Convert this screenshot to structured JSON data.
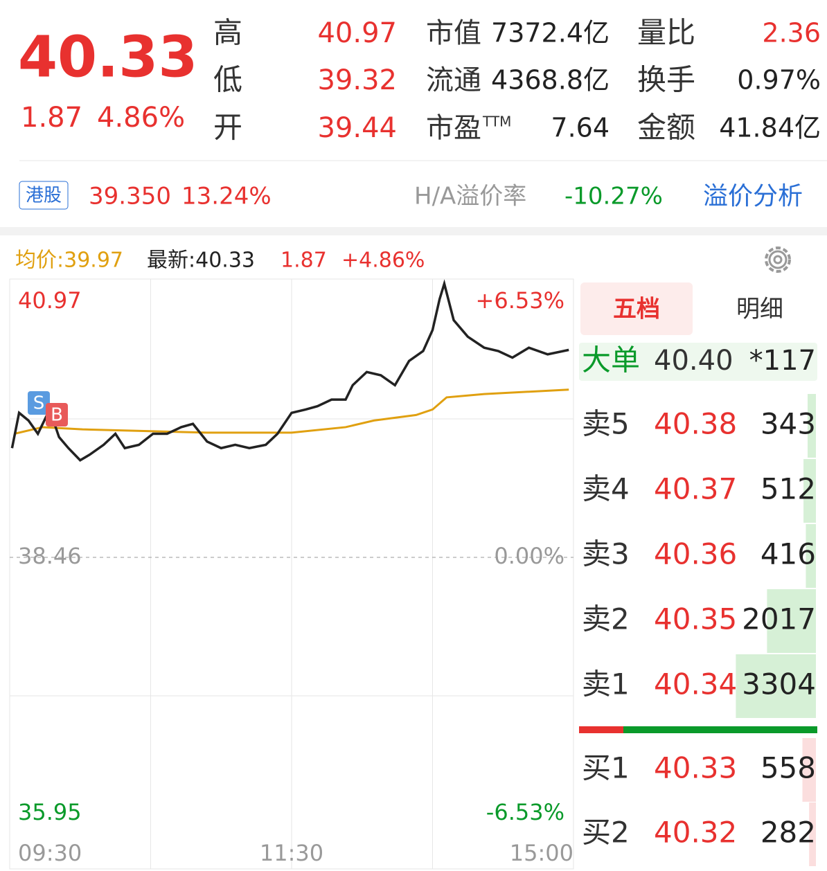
{
  "quote": {
    "price": "40.33",
    "change": "1.87",
    "change_pct": "4.86%",
    "left_stats": [
      {
        "label": "高",
        "value": "40.97"
      },
      {
        "label": "低",
        "value": "39.32"
      },
      {
        "label": "开",
        "value": "39.44"
      }
    ],
    "mid_stats": [
      {
        "label": "市值",
        "value": "7372.4亿"
      },
      {
        "label": "流通",
        "value": "4368.8亿"
      },
      {
        "label": "市盈",
        "sup": "TTM",
        "value": "7.64"
      }
    ],
    "right_stats": [
      {
        "label": "量比",
        "value": "2.36"
      },
      {
        "label": "换手",
        "value": "0.97%"
      },
      {
        "label": "金额",
        "value": "41.84亿"
      }
    ]
  },
  "hk": {
    "badge": "港股",
    "price": "39.350",
    "pct": "13.24%",
    "premium_label": "H/A溢价率",
    "premium": "-10.27%",
    "link": "溢价分析"
  },
  "chart_header": {
    "avg": "均价:39.97",
    "latest": "最新:40.33",
    "change": "1.87",
    "pct": "+4.86%"
  },
  "chart_data": {
    "type": "line",
    "xlim": [
      0,
      240
    ],
    "xticks": [
      {
        "value": 0,
        "label": "09:30"
      },
      {
        "value": 120,
        "label": "11:30"
      },
      {
        "value": 240,
        "label": "15:00"
      }
    ],
    "ylim": [
      35.95,
      40.97
    ],
    "yticks": [
      {
        "value": 40.97,
        "label": "40.97"
      },
      {
        "value": 38.46,
        "label": "38.46"
      },
      {
        "value": 35.95,
        "label": "35.95"
      }
    ],
    "pct_labels": [
      "+6.53%",
      "0.00%",
      "-6.53%"
    ],
    "series": [
      {
        "name": "最新",
        "color": "#222222",
        "x": [
          1,
          4,
          8,
          12,
          17,
          21,
          25,
          30,
          34,
          40,
          45,
          49,
          55,
          61,
          67,
          73,
          78,
          84,
          90,
          96,
          102,
          109,
          114,
          120,
          126,
          131,
          137,
          143,
          146,
          152,
          158,
          164,
          170,
          176,
          180,
          183,
          185,
          189,
          195,
          202,
          208,
          214,
          221,
          229,
          238
        ],
        "values": [
          39.45,
          39.77,
          39.7,
          39.58,
          39.8,
          39.55,
          39.45,
          39.34,
          39.39,
          39.48,
          39.58,
          39.45,
          39.48,
          39.58,
          39.58,
          39.64,
          39.67,
          39.51,
          39.45,
          39.48,
          39.45,
          39.48,
          39.58,
          39.77,
          39.8,
          39.83,
          39.89,
          39.89,
          40.02,
          40.14,
          40.11,
          40.02,
          40.24,
          40.33,
          40.52,
          40.8,
          40.94,
          40.61,
          40.46,
          40.36,
          40.33,
          40.27,
          40.36,
          40.3,
          40.34
        ]
      },
      {
        "name": "均价",
        "color": "#e0a010",
        "x": [
          2,
          14,
          31,
          84,
          120,
          143,
          155,
          173,
          180,
          186,
          202,
          238
        ],
        "values": [
          39.58,
          39.64,
          39.62,
          39.59,
          39.59,
          39.64,
          39.7,
          39.75,
          39.8,
          39.91,
          39.94,
          39.98
        ]
      }
    ],
    "badges": [
      "S",
      "B"
    ]
  },
  "order_book": {
    "tabs": [
      "五档",
      "明细"
    ],
    "big": {
      "label": "大单",
      "price": "40.40",
      "volume": "*117"
    },
    "asks": [
      {
        "label": "卖5",
        "price": "40.38",
        "volume": 343
      },
      {
        "label": "卖4",
        "price": "40.37",
        "volume": 512
      },
      {
        "label": "卖3",
        "price": "40.36",
        "volume": 416
      },
      {
        "label": "卖2",
        "price": "40.35",
        "volume": 2017
      },
      {
        "label": "卖1",
        "price": "40.34",
        "volume": 3304
      }
    ],
    "bids": [
      {
        "label": "买1",
        "price": "40.33",
        "volume": 558
      },
      {
        "label": "买2",
        "price": "40.32",
        "volume": 282
      }
    ]
  }
}
